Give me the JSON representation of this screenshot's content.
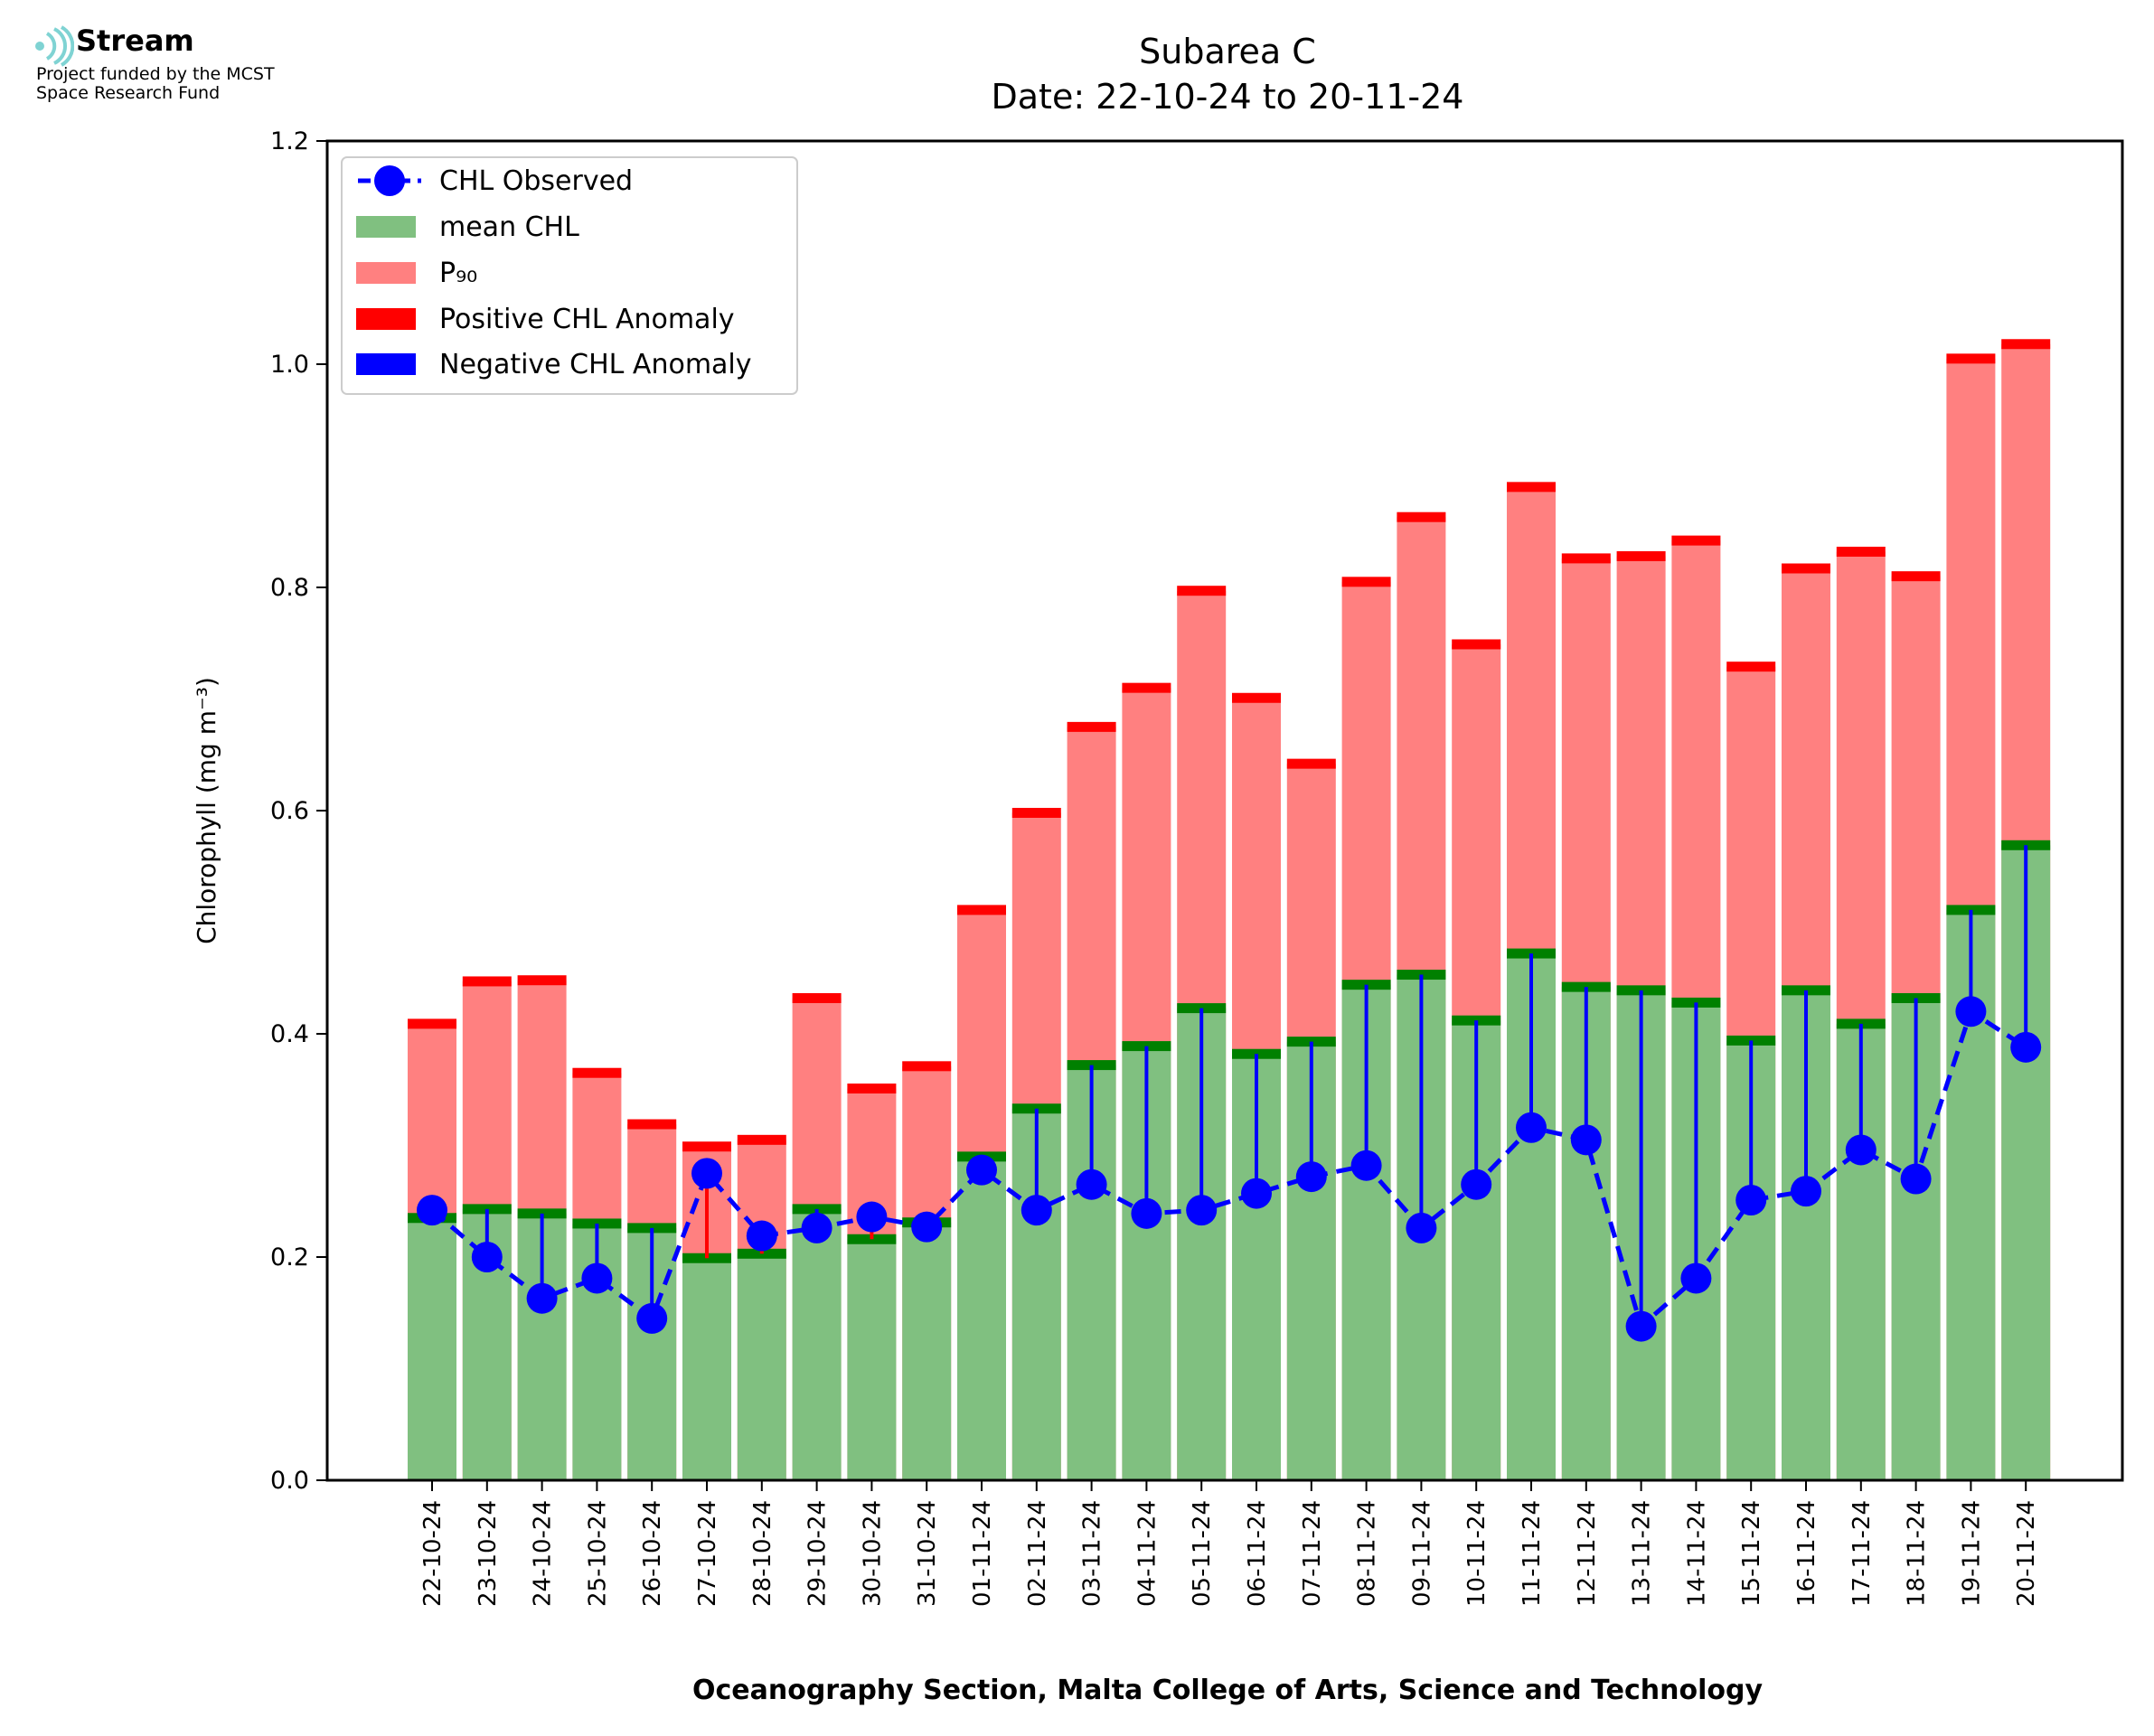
{
  "logo": {
    "wordmark": "Stream",
    "line1": "Project funded by the MCST",
    "line2": "Space Research Fund",
    "icon": "stream-waves-icon",
    "icon_color": "#7fd3d3"
  },
  "chart_data": {
    "type": "bar",
    "title": "Subarea C",
    "subtitle": "Date: 22-10-24 to 20-11-24",
    "xlabel": "Oceanography Section, Malta College of Arts, Science and Technology",
    "ylabel": "Chlorophyll (mg m⁻³)",
    "ylim": [
      0.0,
      1.2
    ],
    "yticks": [
      "0.0",
      "0.2",
      "0.4",
      "0.6",
      "0.8",
      "1.0",
      "1.2"
    ],
    "categories": [
      "22-10-24",
      "23-10-24",
      "24-10-24",
      "25-10-24",
      "26-10-24",
      "27-10-24",
      "28-10-24",
      "29-10-24",
      "30-10-24",
      "31-10-24",
      "01-11-24",
      "02-11-24",
      "03-11-24",
      "04-11-24",
      "05-11-24",
      "06-11-24",
      "07-11-24",
      "08-11-24",
      "09-11-24",
      "10-11-24",
      "11-11-24",
      "12-11-24",
      "13-11-24",
      "14-11-24",
      "15-11-24",
      "16-11-24",
      "17-11-24",
      "18-11-24",
      "19-11-24",
      "20-11-24"
    ],
    "series": [
      {
        "name": "CHL Observed",
        "style": "dashed line with circle markers",
        "color": "#0000ff",
        "values": [
          0.242,
          0.2,
          0.163,
          0.181,
          0.145,
          0.275,
          0.219,
          0.226,
          0.236,
          0.227,
          0.278,
          0.242,
          0.265,
          0.239,
          0.242,
          0.257,
          0.272,
          0.282,
          0.226,
          0.265,
          0.316,
          0.305,
          0.138,
          0.181,
          0.251,
          0.259,
          0.296,
          0.27,
          0.42,
          0.388
        ]
      },
      {
        "name": "mean CHL",
        "color": "#80c080",
        "values": [
          0.235,
          0.243,
          0.239,
          0.23,
          0.226,
          0.199,
          0.203,
          0.243,
          0.216,
          0.231,
          0.29,
          0.333,
          0.372,
          0.389,
          0.423,
          0.382,
          0.393,
          0.444,
          0.453,
          0.412,
          0.472,
          0.442,
          0.439,
          0.428,
          0.394,
          0.439,
          0.409,
          0.432,
          0.511,
          0.569
        ]
      },
      {
        "name": "P₉₀",
        "color": "#ff8080",
        "values": [
          0.409,
          0.447,
          0.448,
          0.365,
          0.319,
          0.299,
          0.305,
          0.432,
          0.351,
          0.371,
          0.511,
          0.598,
          0.675,
          0.71,
          0.797,
          0.701,
          0.642,
          0.805,
          0.863,
          0.749,
          0.89,
          0.826,
          0.828,
          0.842,
          0.729,
          0.817,
          0.832,
          0.81,
          1.005,
          1.018
        ]
      },
      {
        "name": "Positive CHL Anomaly",
        "color": "#ff0000"
      },
      {
        "name": "Negative CHL Anomaly",
        "color": "#0000ff"
      }
    ],
    "mean_marker_color": "#008000",
    "p90_marker_color": "#ff0000",
    "legend_position": "top-left",
    "grid": false
  }
}
